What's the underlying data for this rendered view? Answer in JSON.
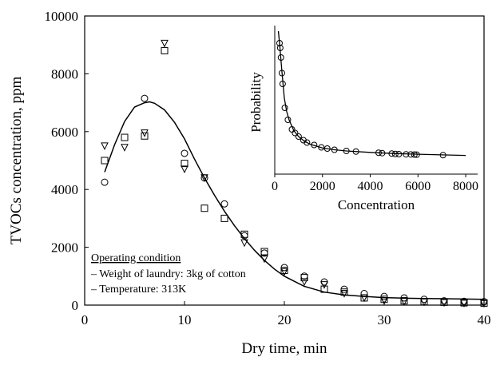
{
  "chart_data": {
    "type": "scatter",
    "title": "",
    "xlabel": "Dry time, min",
    "ylabel": "TVOCs concentration, ppm",
    "xlim": [
      0,
      40
    ],
    "ylim": [
      0,
      10000
    ],
    "xticks": [
      0,
      10,
      20,
      30,
      40
    ],
    "yticks": [
      0,
      2000,
      4000,
      6000,
      8000,
      10000
    ],
    "grid": false,
    "series": [
      {
        "name": "circle",
        "marker": "circle",
        "x": [
          2,
          6,
          10,
          12,
          14,
          16,
          18,
          20,
          22,
          24,
          26,
          28,
          30,
          32,
          34,
          36,
          38,
          40
        ],
        "y": [
          4250,
          7150,
          5250,
          4400,
          3500,
          2400,
          1800,
          1300,
          1000,
          800,
          550,
          400,
          300,
          250,
          200,
          150,
          130,
          120
        ]
      },
      {
        "name": "square",
        "marker": "square",
        "x": [
          2,
          4,
          6,
          8,
          10,
          12,
          14,
          16,
          18,
          20,
          22,
          24,
          26,
          28,
          30,
          32,
          34,
          36,
          38,
          40
        ],
        "y": [
          5000,
          5800,
          5850,
          8800,
          4900,
          3350,
          3000,
          2450,
          1850,
          1200,
          950,
          550,
          450,
          250,
          200,
          150,
          120,
          100,
          80,
          70
        ]
      },
      {
        "name": "triangle-down",
        "marker": "triangle-down",
        "x": [
          2,
          4,
          6,
          8,
          10,
          12,
          16,
          18,
          20,
          22,
          24,
          26,
          28,
          30,
          32,
          34,
          36,
          38,
          40
        ],
        "y": [
          5500,
          5450,
          5950,
          9050,
          4700,
          4400,
          2150,
          1600,
          1150,
          800,
          700,
          400,
          250,
          150,
          120,
          100,
          80,
          60,
          50
        ]
      }
    ],
    "fit_curve": {
      "x": [
        2,
        3,
        4,
        5,
        6,
        6.5,
        7,
        8,
        9,
        10,
        11,
        12,
        13,
        14,
        15,
        16,
        17,
        18,
        19,
        20,
        22,
        24,
        26,
        28,
        30,
        32,
        34,
        36,
        38,
        40
      ],
      "y": [
        4600,
        5550,
        6350,
        6850,
        7000,
        7030,
        6980,
        6750,
        6320,
        5750,
        5050,
        4400,
        3800,
        3250,
        2750,
        2300,
        1900,
        1550,
        1250,
        1000,
        650,
        450,
        350,
        300,
        260,
        240,
        230,
        220,
        210,
        200
      ]
    },
    "annotation": {
      "heading": "Operating condition",
      "lines": [
        "– Weight of laundry: 3kg of cotton",
        "– Temperature: 313K"
      ]
    },
    "inset": {
      "type": "scatter",
      "xlabel": "Concentration",
      "ylabel": "Probability",
      "xlim": [
        0,
        8500
      ],
      "xticks": [
        0,
        2000,
        4000,
        6000,
        8000
      ],
      "points": {
        "x": [
          200,
          230,
          260,
          300,
          330,
          420,
          550,
          720,
          850,
          1000,
          1200,
          1350,
          1650,
          1950,
          2200,
          2500,
          3000,
          3400,
          4350,
          4500,
          4900,
          5050,
          5200,
          5500,
          5700,
          5850,
          5950,
          7050
        ],
        "y": [
          1.0,
          0.96,
          0.88,
          0.75,
          0.66,
          0.46,
          0.36,
          0.28,
          0.25,
          0.22,
          0.19,
          0.17,
          0.15,
          0.13,
          0.12,
          0.11,
          0.1,
          0.095,
          0.085,
          0.082,
          0.078,
          0.075,
          0.073,
          0.072,
          0.071,
          0.07,
          0.069,
          0.065
        ]
      },
      "curve": {
        "x": [
          150,
          200,
          300,
          400,
          500,
          600,
          800,
          1000,
          1250,
          1500,
          2000,
          2500,
          3000,
          4000,
          5000,
          6000,
          7000,
          8000
        ],
        "y": [
          1.1,
          1.0,
          0.76,
          0.54,
          0.43,
          0.36,
          0.27,
          0.22,
          0.18,
          0.155,
          0.125,
          0.11,
          0.1,
          0.088,
          0.079,
          0.073,
          0.067,
          0.063
        ]
      }
    }
  }
}
